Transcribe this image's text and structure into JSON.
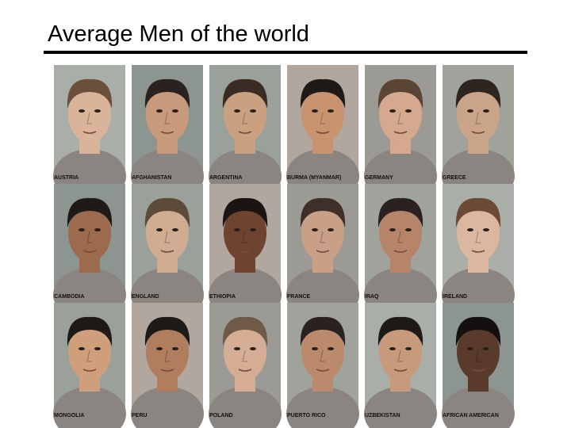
{
  "header": {
    "title": "Average Men of the world"
  },
  "grid": {
    "labels": [
      "AUSTRIA",
      "AFGHANISTAN",
      "ARGENTINA",
      "BURMA (MYANMAR)",
      "GERMANY",
      "GREECE",
      "CAMBODIA",
      "ENGLAND",
      "ETHIOPIA",
      "FRANCE",
      "IRAQ",
      "IRELAND",
      "MONGOLIA",
      "PERU",
      "POLAND",
      "PUERTO RICO",
      "UZBEKISTAN",
      "AFRICAN AMERICAN"
    ]
  }
}
